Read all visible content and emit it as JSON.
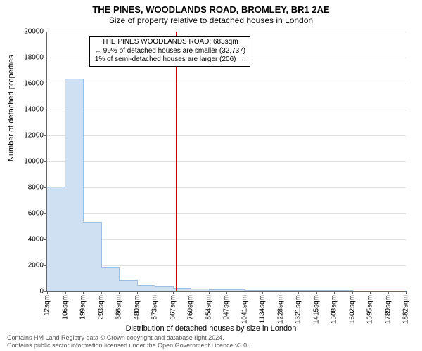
{
  "title": "THE PINES, WOODLANDS ROAD, BROMLEY, BR1 2AE",
  "subtitle": "Size of property relative to detached houses in London",
  "chart": {
    "type": "histogram",
    "ylim": [
      0,
      20000
    ],
    "ytick_step": 2000,
    "yticks": [
      0,
      2000,
      4000,
      6000,
      8000,
      10000,
      12000,
      14000,
      16000,
      18000,
      20000
    ],
    "ylabel": "Number of detached properties",
    "xlabel": "Distribution of detached houses by size in London",
    "xtick_labels": [
      "12sqm",
      "106sqm",
      "199sqm",
      "293sqm",
      "386sqm",
      "480sqm",
      "573sqm",
      "667sqm",
      "760sqm",
      "854sqm",
      "947sqm",
      "1041sqm",
      "1134sqm",
      "1228sqm",
      "1321sqm",
      "1415sqm",
      "1508sqm",
      "1602sqm",
      "1695sqm",
      "1789sqm",
      "1882sqm"
    ],
    "bars": [
      8000,
      16300,
      5300,
      1800,
      800,
      450,
      300,
      200,
      150,
      110,
      90,
      70,
      60,
      50,
      40,
      35,
      30,
      25,
      20,
      18
    ],
    "bar_color": "#cfe0f3",
    "bar_border": "#9fbfe0",
    "grid_color": "#e0e0e0",
    "background": "#ffffff",
    "marker_value": 683,
    "xmin": 12,
    "xmax": 1882,
    "marker_color": "#cc0000"
  },
  "annotation": {
    "line1": "THE PINES WOODLANDS ROAD: 683sqm",
    "line2": "← 99% of detached houses are smaller (32,737)",
    "line3": "1% of semi-detached houses are larger (206) →"
  },
  "footer": {
    "line1": "Contains HM Land Registry data © Crown copyright and database right 2024.",
    "line2": "Contains public sector information licensed under the Open Government Licence v3.0."
  }
}
